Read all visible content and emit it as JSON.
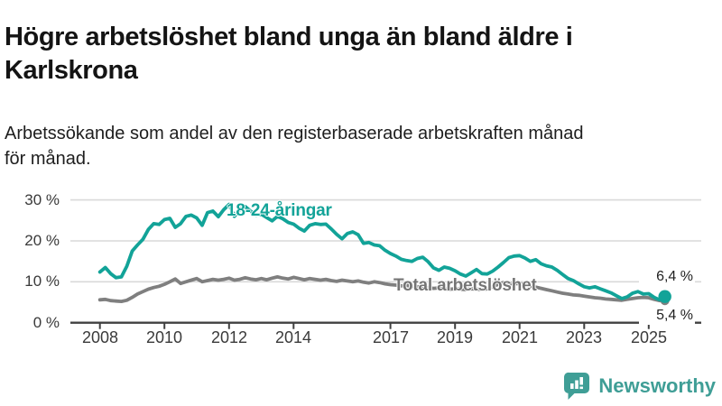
{
  "header": {
    "title": "Högre arbetslöshet bland unga än bland äldre i\nKarlskrona",
    "subtitle": "Arbetssökande som andel av den registerbaserade arbetskraften månad\nför månad."
  },
  "footer": {
    "brand": "Newsworthy",
    "logo_icon": "newsworthy-speech-bubble-bar-chart-icon",
    "brand_color": "#3f9e96"
  },
  "colors": {
    "accent_teal": "#12a398",
    "series_gray": "#7f7f7f",
    "gridline": "#d9d9d9",
    "axis": "#404040",
    "text_dark": "#141414"
  },
  "chart_data": {
    "type": "line",
    "x_unit": "decimal_year",
    "x_start": 2008,
    "x_step_years": 0.166667,
    "x_end": 2025.5,
    "xticks": [
      2008,
      2010,
      2012,
      2014,
      2017,
      2019,
      2021,
      2023,
      2025
    ],
    "yticks": [
      0,
      10,
      20,
      30
    ],
    "ytick_labels": [
      "0 %",
      "10 %",
      "20 %",
      "30 %"
    ],
    "ylim": [
      0,
      31
    ],
    "grid": "horizontal",
    "legend": "inline-labels",
    "series": [
      {
        "name": "18-24-åringar",
        "color": "#12a398",
        "end_label": "6,4 %",
        "end_value": 6.4,
        "values": [
          12.4,
          13.5,
          12.0,
          11.0,
          11.2,
          13.8,
          17.5,
          19.0,
          20.4,
          22.8,
          24.2,
          24.0,
          25.2,
          25.5,
          23.3,
          24.2,
          26.0,
          26.3,
          25.6,
          23.8,
          26.9,
          27.3,
          25.9,
          27.6,
          28.9,
          26.0,
          27.7,
          28.4,
          27.3,
          26.3,
          26.5,
          25.7,
          24.9,
          26.0,
          25.4,
          24.5,
          24.1,
          23.1,
          22.4,
          23.8,
          24.2,
          24.0,
          24.1,
          22.9,
          21.6,
          20.5,
          21.8,
          22.2,
          21.5,
          19.4,
          19.6,
          19.0,
          18.8,
          17.7,
          16.9,
          16.3,
          15.5,
          15.2,
          15.0,
          15.7,
          16.0,
          14.9,
          13.4,
          12.8,
          13.6,
          13.3,
          12.7,
          11.9,
          11.4,
          12.2,
          13.0,
          12.0,
          11.9,
          12.6,
          13.6,
          14.7,
          15.9,
          16.3,
          16.4,
          15.8,
          15.0,
          15.4,
          14.4,
          13.9,
          13.6,
          12.8,
          11.8,
          10.8,
          10.3,
          9.5,
          8.8,
          8.5,
          8.8,
          8.3,
          7.8,
          7.3,
          6.6,
          5.9,
          6.3,
          7.2,
          7.6,
          7.0,
          7.1,
          6.2,
          5.6,
          6.4
        ]
      },
      {
        "name": "Total arbetslöshet",
        "color": "#7f7f7f",
        "end_label": "5,4 %",
        "end_value": 5.4,
        "values": [
          5.6,
          5.7,
          5.4,
          5.3,
          5.2,
          5.5,
          6.2,
          7.0,
          7.6,
          8.2,
          8.6,
          8.9,
          9.4,
          10.0,
          10.7,
          9.6,
          10.0,
          10.4,
          10.8,
          10.0,
          10.3,
          10.6,
          10.4,
          10.6,
          10.9,
          10.4,
          10.6,
          11.0,
          10.7,
          10.5,
          10.8,
          10.5,
          10.9,
          11.2,
          10.9,
          10.7,
          11.1,
          10.8,
          10.5,
          10.8,
          10.6,
          10.4,
          10.6,
          10.3,
          10.1,
          10.4,
          10.2,
          10.0,
          10.2,
          9.9,
          9.7,
          10.0,
          9.8,
          9.5,
          9.3,
          9.2,
          9.0,
          9.1,
          8.9,
          8.8,
          8.7,
          8.6,
          8.4,
          8.5,
          8.3,
          8.2,
          8.3,
          8.2,
          8.1,
          8.3,
          8.2,
          8.1,
          8.3,
          8.8,
          9.4,
          9.8,
          9.6,
          9.5,
          9.6,
          9.3,
          9.0,
          8.7,
          8.4,
          8.1,
          7.8,
          7.5,
          7.2,
          7.0,
          6.8,
          6.7,
          6.5,
          6.3,
          6.1,
          6.0,
          5.8,
          5.7,
          5.6,
          5.5,
          5.7,
          5.9,
          6.1,
          6.2,
          6.1,
          5.7,
          5.4,
          5.4
        ]
      }
    ]
  }
}
